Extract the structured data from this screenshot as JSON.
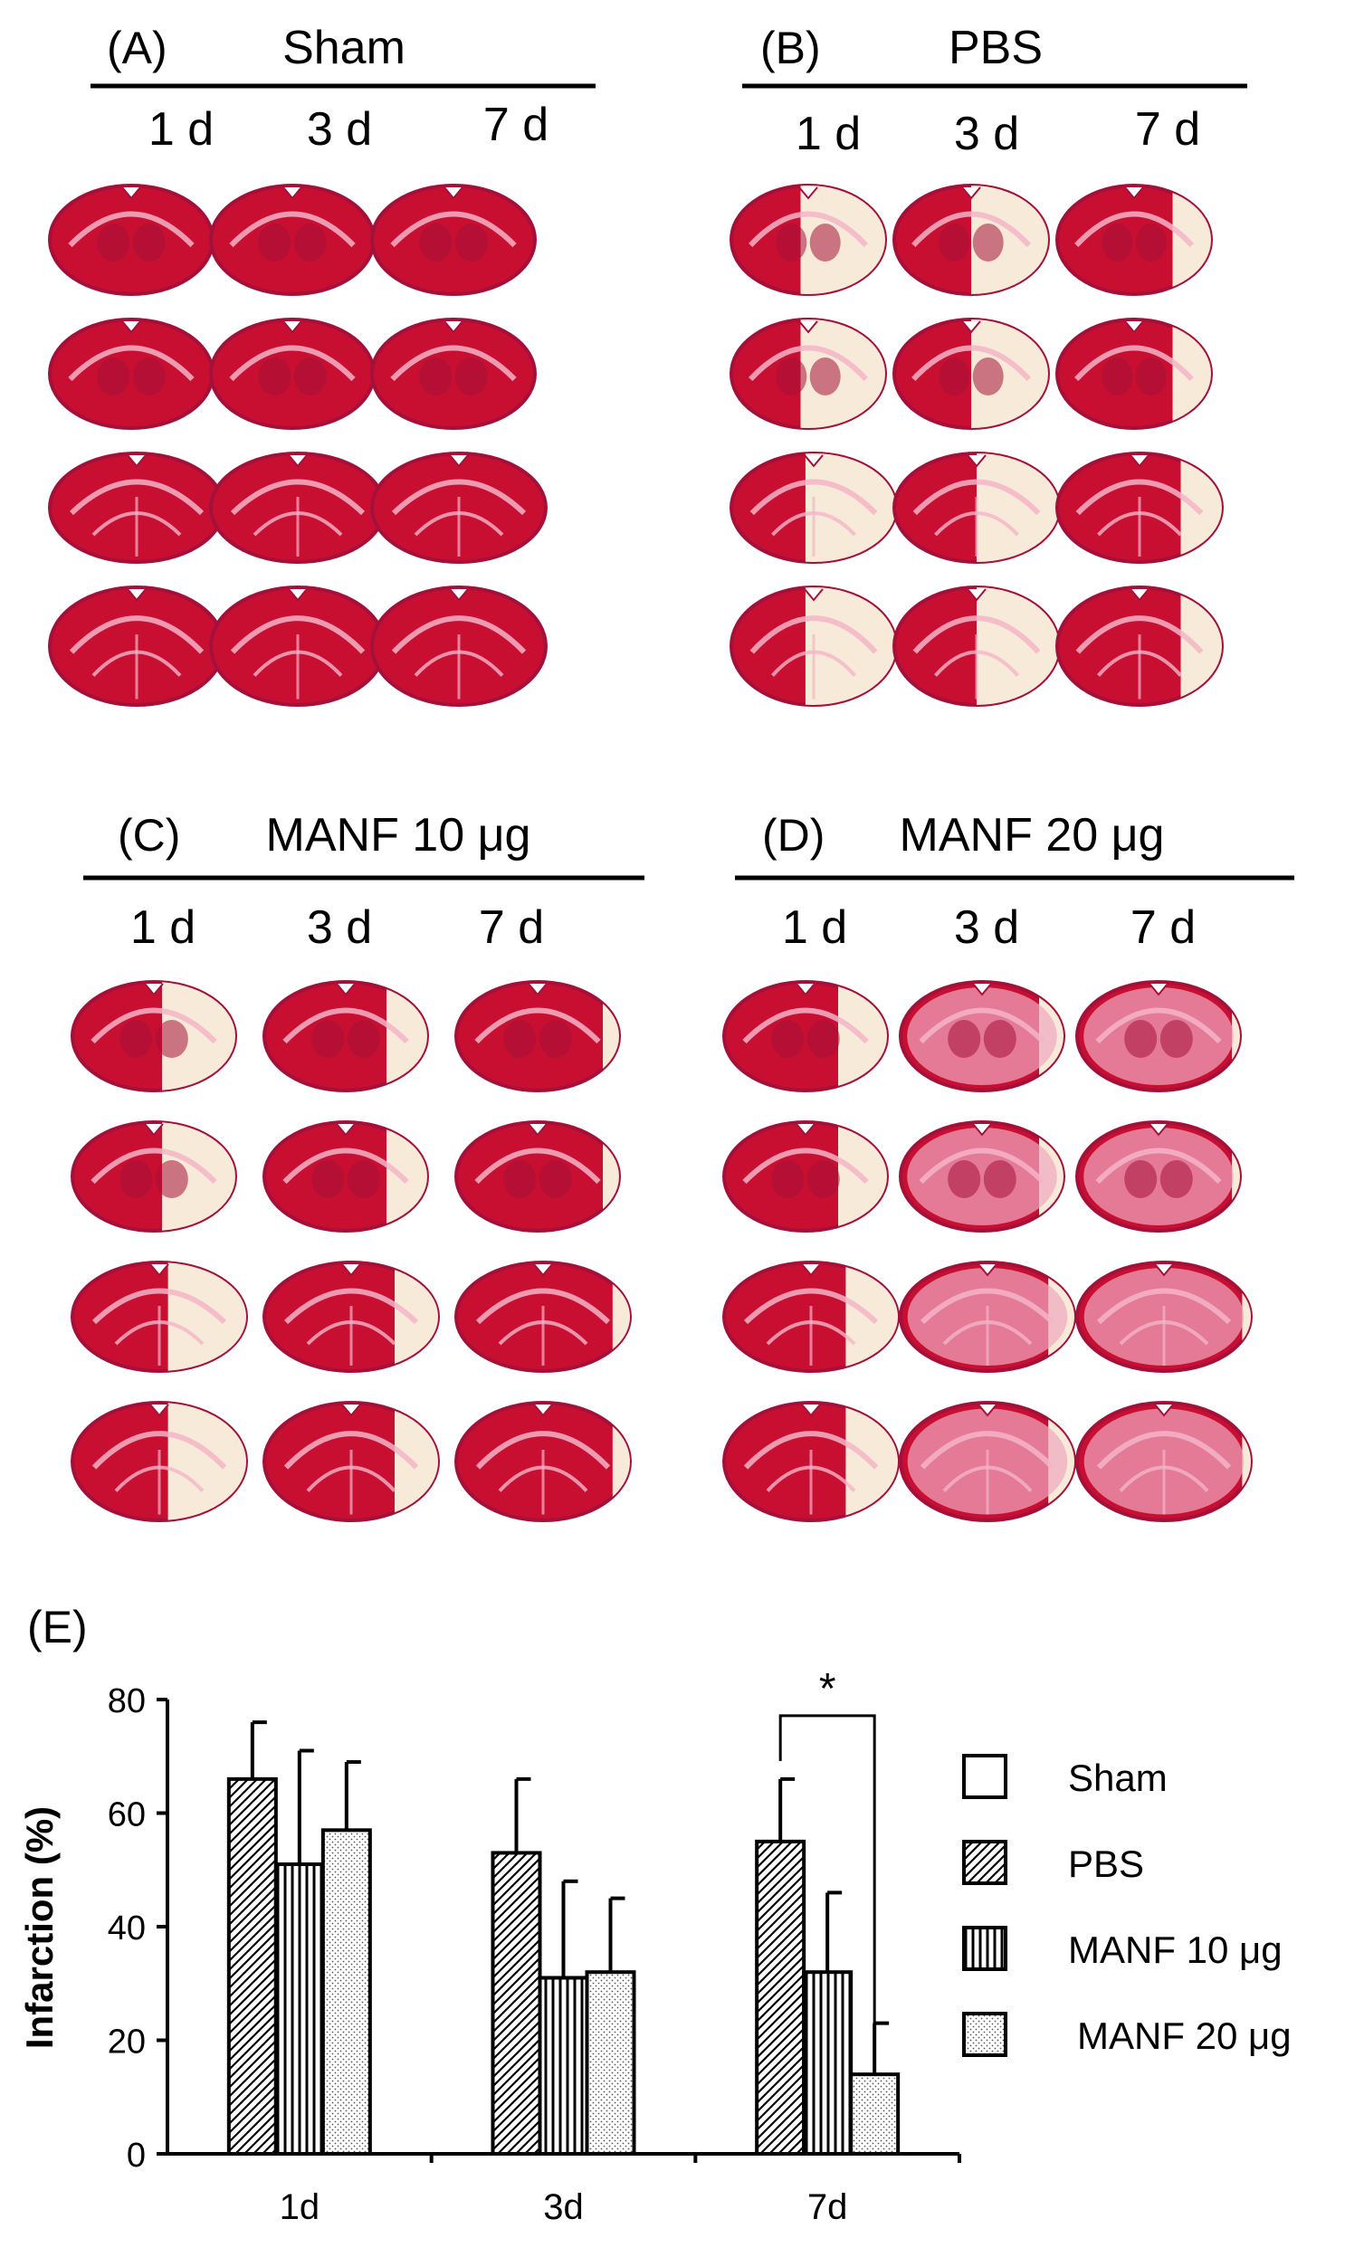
{
  "panels": [
    {
      "label": "(A)",
      "title": "Sham",
      "days": [
        "1 d",
        "3 d",
        "7 d"
      ],
      "stain": "normal"
    },
    {
      "label": "(B)",
      "title": "PBS",
      "days": [
        "1 d",
        "3 d",
        "7 d"
      ],
      "stain": "pbs"
    },
    {
      "label": "(C)",
      "title": "MANF 10 μg",
      "days": [
        "1 d",
        "3 d",
        "7 d"
      ],
      "stain": "manf10"
    },
    {
      "label": "(D)",
      "title": "MANF 20 μg",
      "days": [
        "1 d",
        "3 d",
        "7 d"
      ],
      "stain": "manf20"
    }
  ],
  "colors": {
    "healthy": "#c80f32",
    "healthy_dark": "#a5103a",
    "white_matter": "#f4b4c8",
    "infarct": "#f7ead8",
    "pale_pink": "#f0a8c0"
  },
  "chart_data": {
    "panel_label": "(E)",
    "type": "bar",
    "categories": [
      "1d",
      "3d",
      "7d"
    ],
    "ylabel": "Infarction (%)",
    "xlabel": "",
    "ylim": [
      0,
      80
    ],
    "yticks": [
      0,
      20,
      40,
      60,
      80
    ],
    "series": [
      {
        "name": "Sham",
        "pattern": "empty",
        "values": [
          0,
          0,
          0
        ],
        "errors": [
          0,
          0,
          0
        ]
      },
      {
        "name": "PBS",
        "pattern": "diagonal",
        "values": [
          66,
          53,
          55
        ],
        "errors": [
          10,
          13,
          11
        ]
      },
      {
        "name": "MANF 10 μg",
        "pattern": "vertical",
        "values": [
          51,
          31,
          32
        ],
        "errors": [
          20,
          17,
          14
        ]
      },
      {
        "name": "MANF 20 μg",
        "pattern": "dots",
        "values": [
          57,
          32,
          14
        ],
        "errors": [
          12,
          13,
          9
        ]
      }
    ],
    "annotations": [
      {
        "text": "*",
        "between": [
          "PBS",
          "MANF 20 μg"
        ],
        "category": "7d"
      }
    ],
    "legend": "right"
  }
}
